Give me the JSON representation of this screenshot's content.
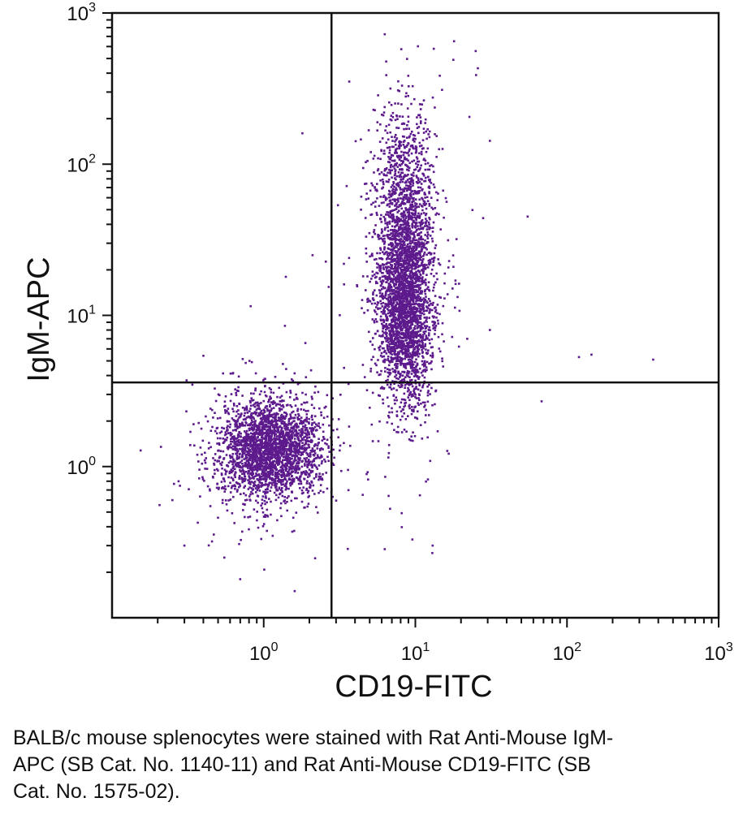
{
  "chart_data": {
    "type": "scatter",
    "title": "",
    "xlabel": "CD19-FITC",
    "ylabel": "IgM-APC",
    "x_scale": "log",
    "y_scale": "log",
    "xlim": [
      0.1,
      1000
    ],
    "ylim": [
      0.1,
      1000
    ],
    "x_ticks": [
      {
        "base": "10",
        "exp": "0"
      },
      {
        "base": "10",
        "exp": "1"
      },
      {
        "base": "10",
        "exp": "2"
      },
      {
        "base": "10",
        "exp": "3"
      }
    ],
    "y_ticks": [
      {
        "base": "10",
        "exp": "0"
      },
      {
        "base": "10",
        "exp": "1"
      },
      {
        "base": "10",
        "exp": "2"
      },
      {
        "base": "10",
        "exp": "3"
      }
    ],
    "grid": false,
    "quadrant_gates": {
      "x": 2.8,
      "y": 3.6
    },
    "point_color": "#5c1a8c",
    "populations": [
      {
        "center_x": 1.1,
        "center_y": 1.3,
        "spread_log_x": 0.16,
        "spread_log_y": 0.16,
        "count": 2600
      },
      {
        "center_x": 8.5,
        "center_y": 12,
        "spread_log_x": 0.085,
        "spread_log_y": 0.32,
        "count": 2800
      },
      {
        "center_x": 8.5,
        "center_y": 60,
        "spread_log_x": 0.1,
        "spread_log_y": 0.3,
        "count": 900
      }
    ],
    "outliers": [
      {
        "x": 18,
        "y": 650
      },
      {
        "x": 25,
        "y": 560
      },
      {
        "x": 15,
        "y": 310
      },
      {
        "x": 55,
        "y": 45
      },
      {
        "x": 28,
        "y": 44
      },
      {
        "x": 120,
        "y": 5.3
      },
      {
        "x": 145,
        "y": 5.5
      },
      {
        "x": 370,
        "y": 5.1
      },
      {
        "x": 68,
        "y": 2.7
      },
      {
        "x": 13,
        "y": 0.3
      },
      {
        "x": 4.5,
        "y": 0.65
      },
      {
        "x": 1.6,
        "y": 0.15
      },
      {
        "x": 0.82,
        "y": 11.5
      },
      {
        "x": 1.7,
        "y": 0.96
      },
      {
        "x": 2.5,
        "y": 2.1
      },
      {
        "x": 1.8,
        "y": 160
      },
      {
        "x": 0.25,
        "y": 0.6
      },
      {
        "x": 0.21,
        "y": 1.35
      },
      {
        "x": 0.3,
        "y": 0.3
      },
      {
        "x": 3.6,
        "y": 0.95
      },
      {
        "x": 22,
        "y": 7
      },
      {
        "x": 31,
        "y": 8
      },
      {
        "x": 4.8,
        "y": 3.2
      },
      {
        "x": 1.4,
        "y": 18
      },
      {
        "x": 2.1,
        "y": 25
      },
      {
        "x": 0.55,
        "y": 0.25
      },
      {
        "x": 0.7,
        "y": 0.18
      },
      {
        "x": 1.9,
        "y": 3.9
      }
    ]
  },
  "caption": "BALB/c mouse splenocytes were stained with Rat Anti-Mouse IgM-APC (SB Cat. No. 1140-11) and Rat Anti-Mouse CD19-FITC (SB Cat. No. 1575-02)."
}
